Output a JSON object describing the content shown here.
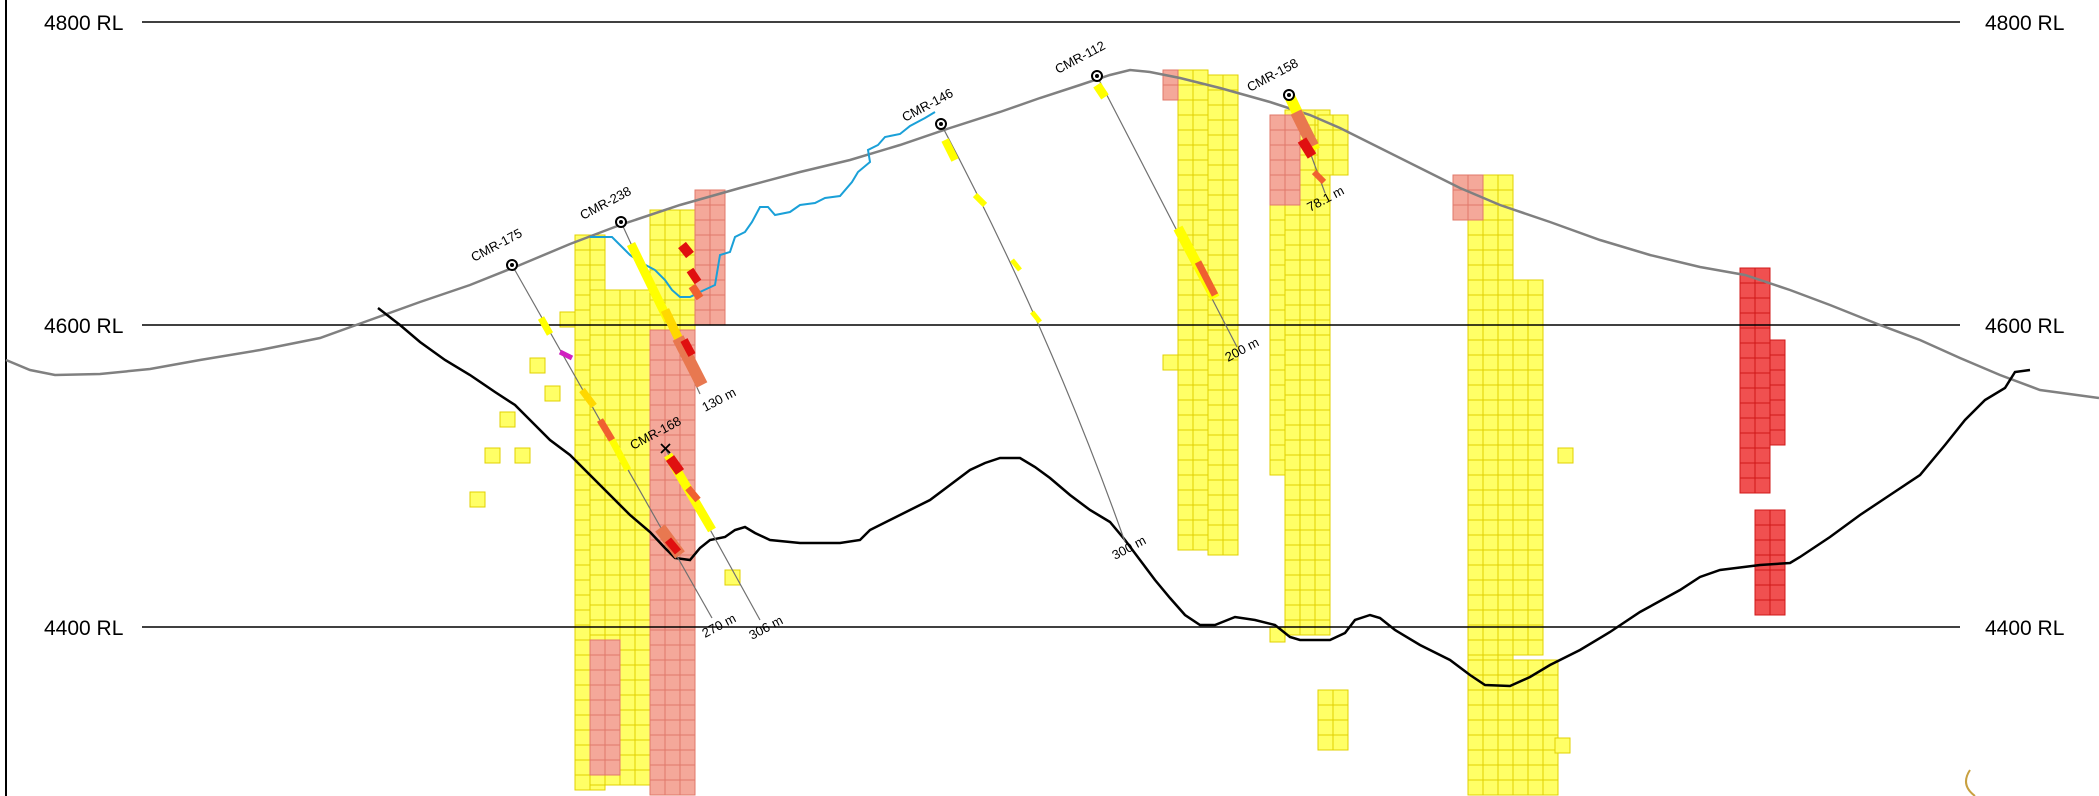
{
  "rl_labels": {
    "rl_4800": "4800 RL",
    "rl_4600": "4600 RL",
    "rl_4400": "4400 RL"
  },
  "drillholes": [
    {
      "id": "CMR-175",
      "depth_label": "270 m"
    },
    {
      "id": "CMR-238",
      "depth_label": "130 m"
    },
    {
      "id": "CMR-168",
      "depth_label": "306 m"
    },
    {
      "id": "CMR-146",
      "depth_label": "300 m"
    },
    {
      "id": "CMR-112",
      "depth_label": "200 m"
    },
    {
      "id": "CMR-158",
      "depth_label": "78.1 m"
    }
  ],
  "colors": {
    "block_low": "#ffff66",
    "block_low_stroke": "#e0d000",
    "block_mid": "#f4a89a",
    "block_mid_stroke": "#e0786a",
    "block_high": "#f05050",
    "block_high_stroke": "#d01818",
    "topography": "#808080",
    "pit_shell": "#000000",
    "water": "#1aa0d8",
    "trace": "#707070"
  }
}
